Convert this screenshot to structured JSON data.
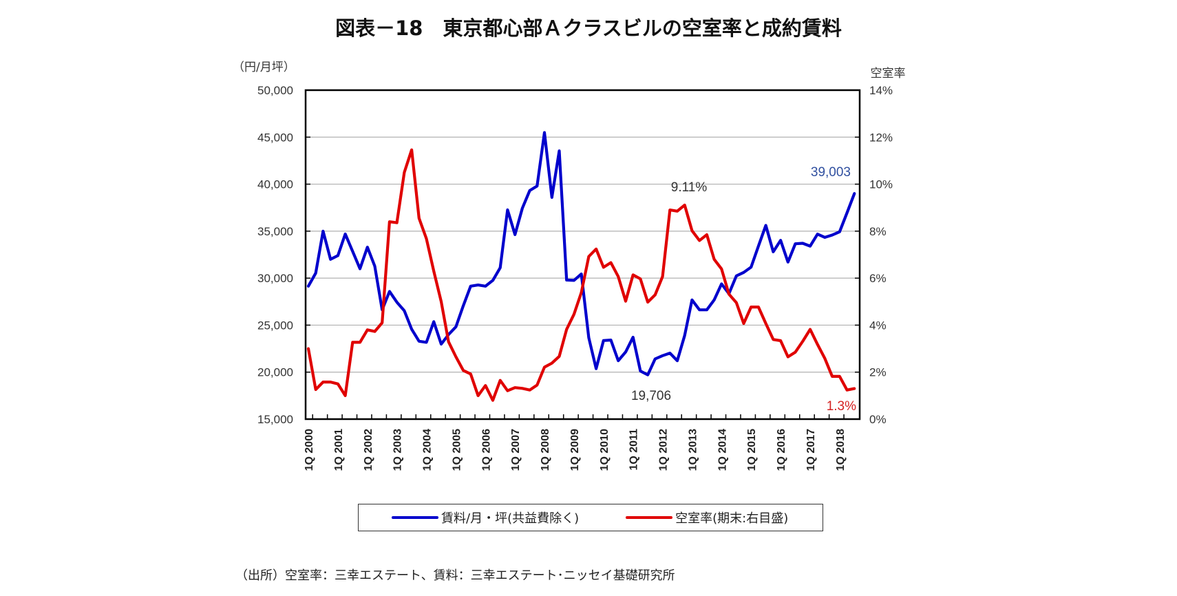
{
  "title": "図表－18　東京都心部Ａクラスビルの空室率と成約賃料",
  "footer": "（出所）空室率：三幸エステート、賃料：三幸エステート･ニッセイ基礎研究所",
  "colors": {
    "rent": "#0000cc",
    "vacancy": "#e00000",
    "rent_label": "#2f4f9f",
    "vacancy_label": "#d42020",
    "grid": "#b0b0b0"
  },
  "chart_data": {
    "type": "line",
    "title": "図表－18　東京都心部Ａクラスビルの空室率と成約賃料",
    "left_axis": {
      "unit_label": "（円/月坪）",
      "range": [
        15000,
        50000
      ],
      "ticks": [
        "50,000",
        "45,000",
        "40,000",
        "35,000",
        "30,000",
        "25,000",
        "20,000",
        "15,000"
      ],
      "tick_values": [
        50000,
        45000,
        40000,
        35000,
        30000,
        25000,
        20000,
        15000
      ]
    },
    "right_axis": {
      "unit_label": "空室率",
      "range": [
        0,
        14
      ],
      "ticks": [
        "14%",
        "12%",
        "10%",
        "8%",
        "6%",
        "4%",
        "2%",
        "0%"
      ],
      "tick_values": [
        14,
        12,
        10,
        8,
        6,
        4,
        2,
        0
      ]
    },
    "x_labels": [
      "1Q 2000",
      "1Q 2001",
      "1Q 2002",
      "1Q 2003",
      "1Q 2004",
      "1Q 2005",
      "1Q 2006",
      "1Q 2007",
      "1Q 2008",
      "1Q 2009",
      "1Q 2010",
      "1Q 2011",
      "1Q 2012",
      "1Q 2013",
      "1Q 2014",
      "1Q 2015",
      "1Q 2016",
      "1Q 2017",
      "1Q 2018"
    ],
    "x_start": "1Q 2000",
    "x_end": "3Q 2018",
    "grid": true,
    "legend_position": "bottom",
    "series": [
      {
        "name": "賃料/月・坪(共益費除く)",
        "axis": "left",
        "values": [
          29150,
          30540,
          35000,
          32000,
          32400,
          34700,
          32850,
          31000,
          33300,
          31270,
          26630,
          28580,
          27440,
          26530,
          24560,
          23290,
          23170,
          25370,
          22980,
          24000,
          24830,
          27070,
          29150,
          29270,
          29150,
          29760,
          31100,
          37270,
          34630,
          37440,
          39320,
          39800,
          45490,
          38590,
          43540,
          29800,
          29760,
          30440,
          23660,
          20370,
          23360,
          23410,
          21220,
          22150,
          23710,
          20120,
          19706,
          21410,
          21750,
          22020,
          21220,
          23900,
          27680,
          26630,
          26630,
          27680,
          29390,
          28340,
          30240,
          30610,
          31170,
          33410,
          35610,
          32800,
          34020,
          31710,
          33660,
          33710,
          33410,
          34680,
          34340,
          34590,
          34930,
          36950,
          39003
        ]
      },
      {
        "name": "空室率(期末:右目盛)",
        "axis": "right",
        "values": [
          3.0,
          1.26,
          1.58,
          1.58,
          1.5,
          1.0,
          3.27,
          3.27,
          3.8,
          3.73,
          4.1,
          8.4,
          8.36,
          10.5,
          11.46,
          8.55,
          7.68,
          6.3,
          5.0,
          3.29,
          2.65,
          2.07,
          1.92,
          1.0,
          1.43,
          0.8,
          1.65,
          1.21,
          1.34,
          1.31,
          1.24,
          1.45,
          2.21,
          2.38,
          2.67,
          3.82,
          4.46,
          5.39,
          6.92,
          7.24,
          6.46,
          6.66,
          6.07,
          5.02,
          6.14,
          5.97,
          4.98,
          5.29,
          6.07,
          8.9,
          8.85,
          9.11,
          8.02,
          7.6,
          7.85,
          6.8,
          6.39,
          5.32,
          4.96,
          4.07,
          4.77,
          4.77,
          4.07,
          3.39,
          3.34,
          2.65,
          2.85,
          3.31,
          3.82,
          3.18,
          2.58,
          1.82,
          1.82,
          1.24,
          1.3
        ]
      }
    ],
    "annotations": [
      {
        "text": "39,003",
        "series": "rent",
        "index": 74
      },
      {
        "text": "9.11%",
        "series": "vacancy",
        "index": 51
      },
      {
        "text": "19,706",
        "series": "rent",
        "index": 46
      },
      {
        "text": "1.3%",
        "series": "vacancy",
        "index": 74
      }
    ]
  }
}
